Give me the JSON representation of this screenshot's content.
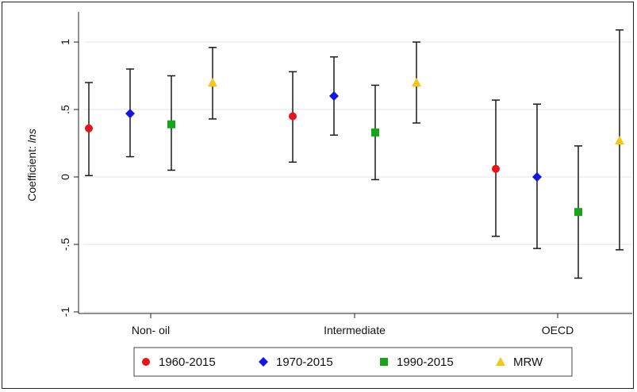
{
  "chart_data": {
    "type": "scatter",
    "ylabel_prefix": "Coefficient: ",
    "ylabel_var": "lns",
    "ylim": [
      -1.0,
      1.15
    ],
    "yticks": [
      1,
      0.5,
      0,
      -0.5,
      -1
    ],
    "ytick_labels": [
      "1",
      ".5",
      "0",
      "-.5",
      "-1"
    ],
    "categories": [
      "Non- oil",
      "Intermediate",
      "OECD"
    ],
    "grid": true,
    "legend_position": "bottom",
    "series": [
      {
        "name": "1960-2015",
        "marker": "circle",
        "color": "#e8141b",
        "points": [
          {
            "category": "Non- oil",
            "y": 0.36,
            "low": 0.01,
            "high": 0.7
          },
          {
            "category": "Intermediate",
            "y": 0.45,
            "low": 0.11,
            "high": 0.78
          },
          {
            "category": "OECD",
            "y": 0.06,
            "low": -0.44,
            "high": 0.57
          }
        ]
      },
      {
        "name": "1970-2015",
        "marker": "diamond",
        "color": "#1414e6",
        "points": [
          {
            "category": "Non- oil",
            "y": 0.47,
            "low": 0.15,
            "high": 0.8
          },
          {
            "category": "Intermediate",
            "y": 0.6,
            "low": 0.31,
            "high": 0.89
          },
          {
            "category": "OECD",
            "y": 0.0,
            "low": -0.53,
            "high": 0.54
          }
        ]
      },
      {
        "name": "1990-2015",
        "marker": "square",
        "color": "#16a516",
        "points": [
          {
            "category": "Non- oil",
            "y": 0.39,
            "low": 0.05,
            "high": 0.75
          },
          {
            "category": "Intermediate",
            "y": 0.33,
            "low": -0.02,
            "high": 0.68
          },
          {
            "category": "OECD",
            "y": -0.26,
            "low": -0.75,
            "high": 0.23
          }
        ]
      },
      {
        "name": "MRW",
        "marker": "triangle",
        "color": "#f5c518",
        "points": [
          {
            "category": "Non- oil",
            "y": 0.7,
            "low": 0.43,
            "high": 0.96
          },
          {
            "category": "Intermediate",
            "y": 0.7,
            "low": 0.4,
            "high": 1.0
          },
          {
            "category": "OECD",
            "y": 0.27,
            "low": -0.54,
            "high": 1.09
          }
        ]
      }
    ]
  }
}
